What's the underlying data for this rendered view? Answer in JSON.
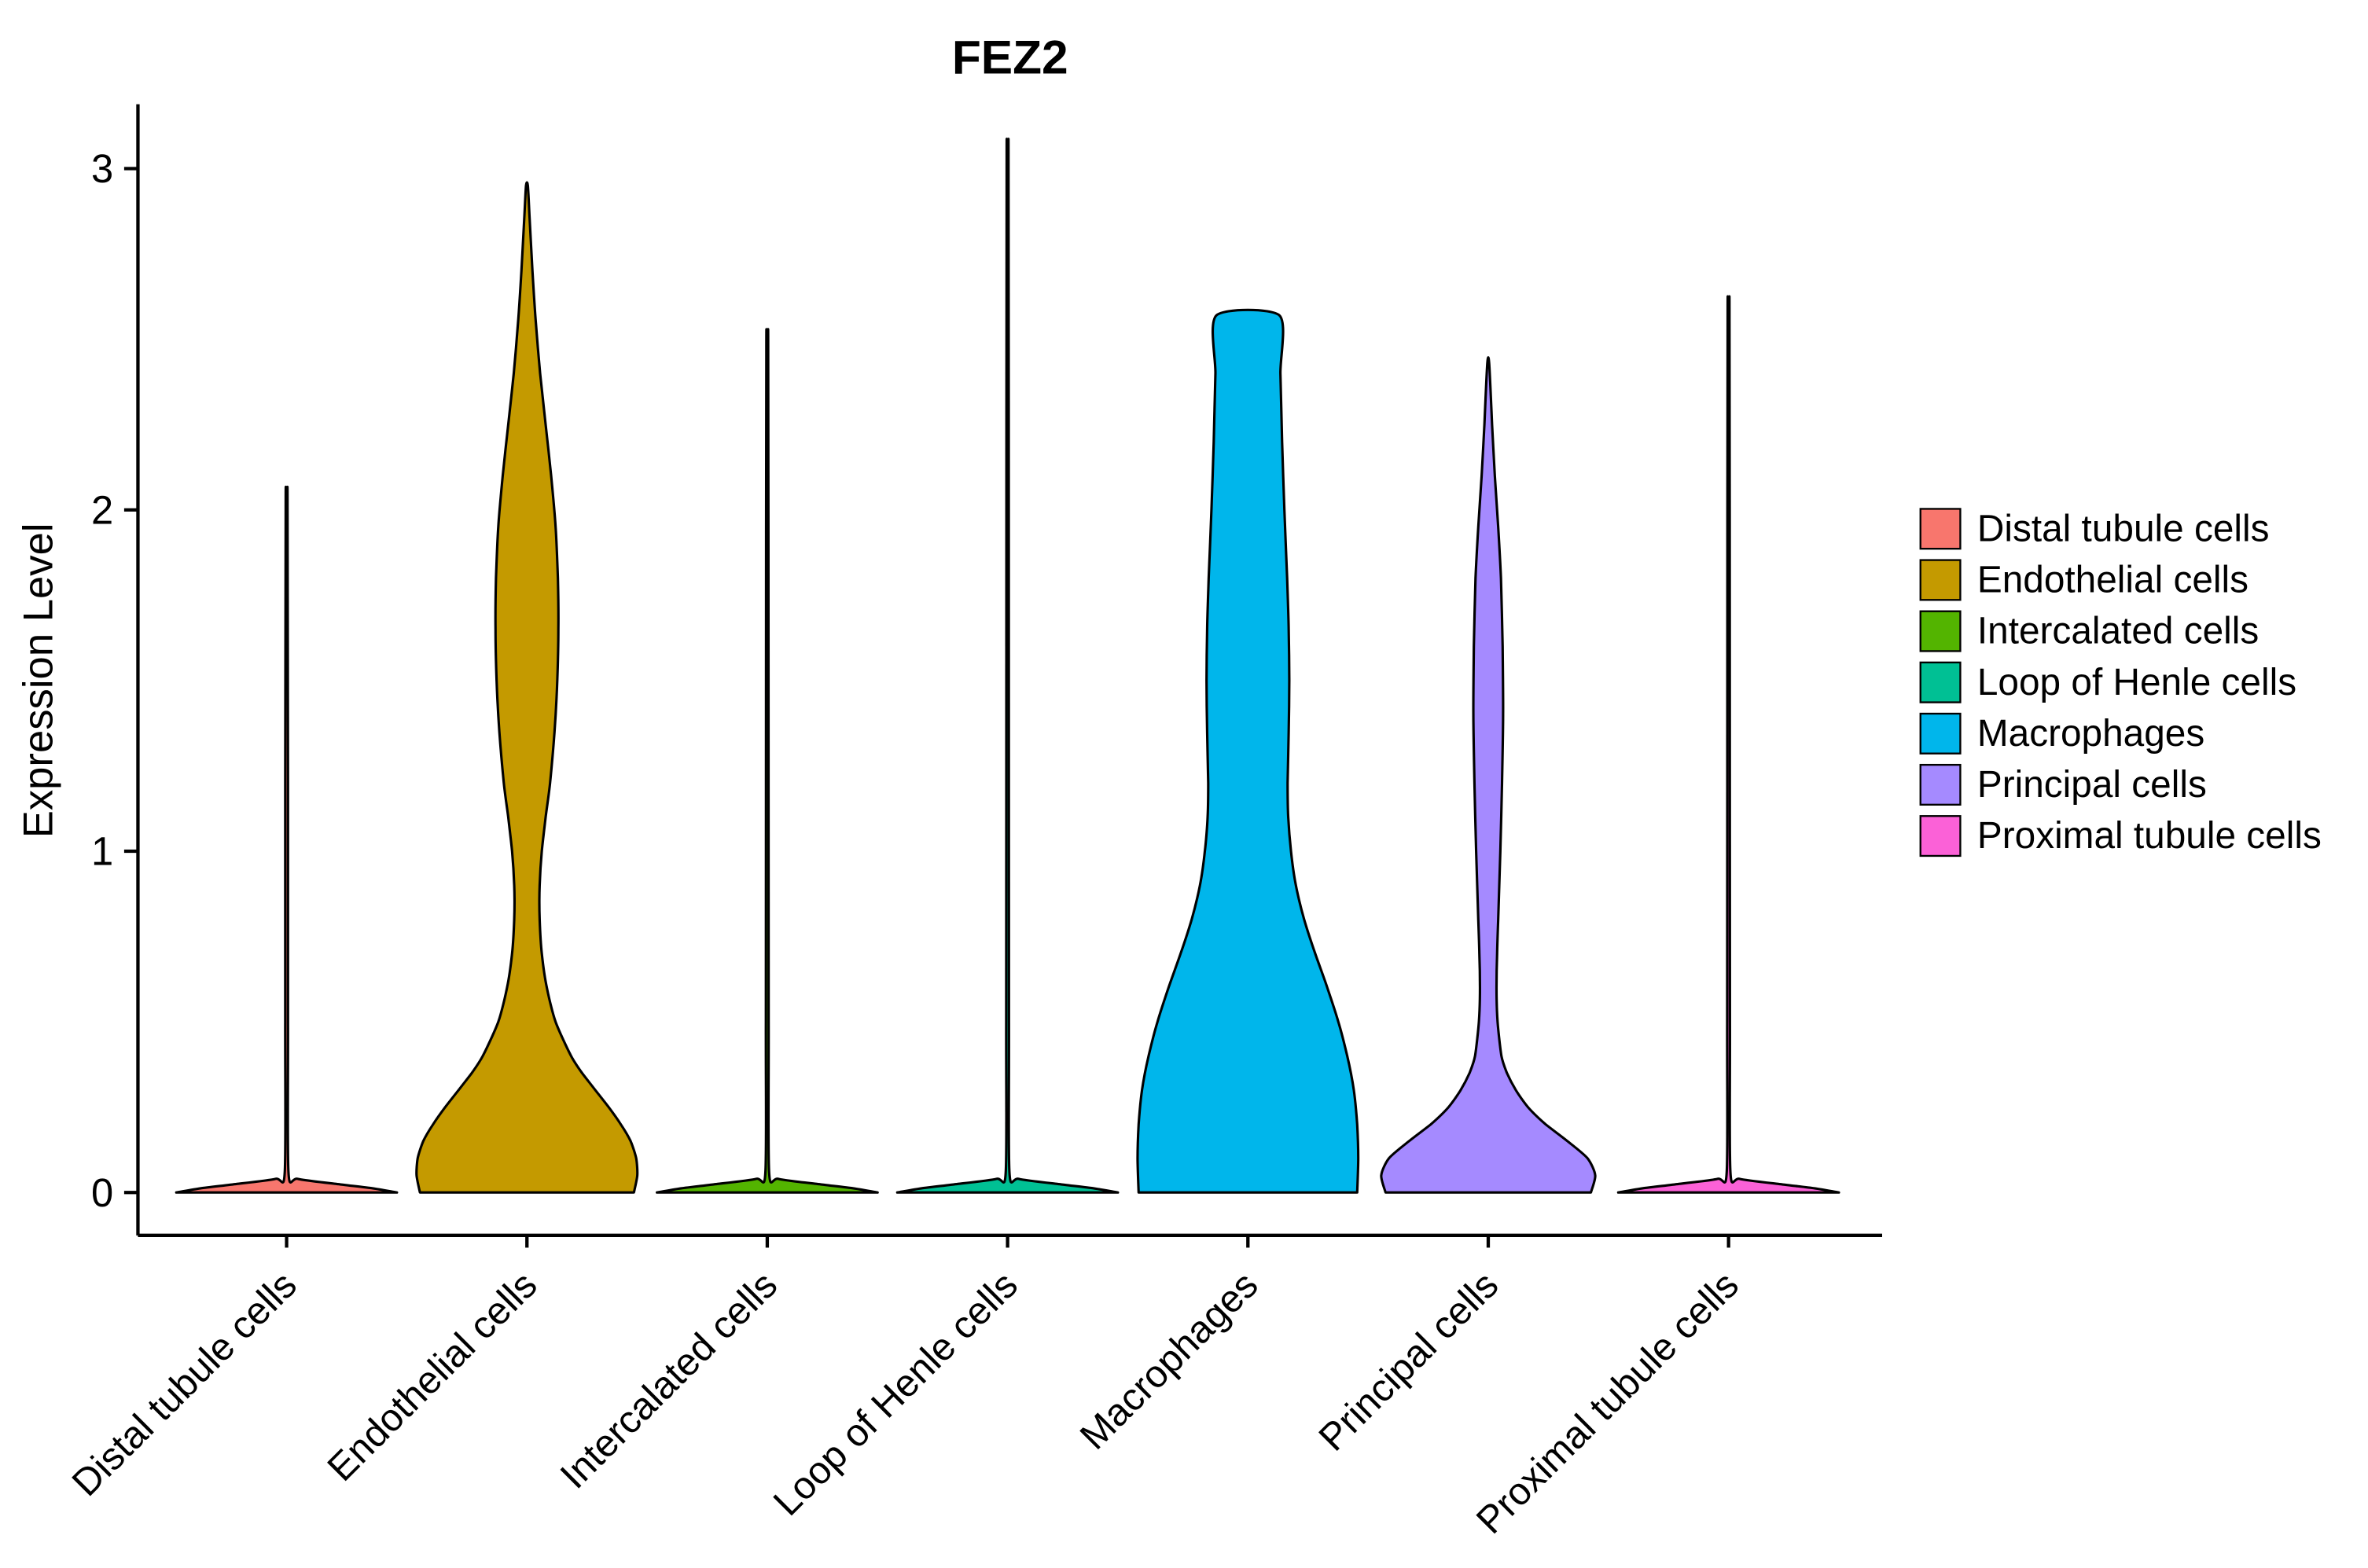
{
  "chart_data": {
    "type": "violin",
    "title": "FEZ2",
    "xlabel": "",
    "ylabel": "Expression Level",
    "ylim": [
      0,
      3.1
    ],
    "yticks": [
      0,
      1,
      2,
      3
    ],
    "grid": false,
    "legend_position": "right",
    "categories": [
      "Distal tubule cells",
      "Endothelial cells",
      "Intercalated cells",
      "Loop of Henle cells",
      "Macrophages",
      "Principal cells",
      "Proximal tubule cells"
    ],
    "series": [
      {
        "name": "Distal tubule cells",
        "color": "#F8766D",
        "max_expression": 2.06,
        "profile": [
          [
            0,
            1.0
          ],
          [
            0.012,
            0.78
          ],
          [
            0.025,
            0.45
          ],
          [
            0.04,
            0.1
          ],
          [
            0.06,
            0.016
          ],
          [
            0.5,
            0.013
          ],
          [
            1.2,
            0.012
          ],
          [
            2.0,
            0.009
          ],
          [
            2.06,
            0.004
          ]
        ]
      },
      {
        "name": "Endothelial cells",
        "color": "#C49A00",
        "max_expression": 2.95,
        "profile": [
          [
            0,
            0.97
          ],
          [
            0.05,
            1.0
          ],
          [
            0.1,
            0.99
          ],
          [
            0.15,
            0.94
          ],
          [
            0.2,
            0.85
          ],
          [
            0.25,
            0.74
          ],
          [
            0.3,
            0.62
          ],
          [
            0.35,
            0.5
          ],
          [
            0.4,
            0.4
          ],
          [
            0.5,
            0.26
          ],
          [
            0.6,
            0.18
          ],
          [
            0.7,
            0.135
          ],
          [
            0.8,
            0.115
          ],
          [
            0.9,
            0.115
          ],
          [
            1.0,
            0.135
          ],
          [
            1.1,
            0.17
          ],
          [
            1.2,
            0.21
          ],
          [
            1.35,
            0.25
          ],
          [
            1.5,
            0.275
          ],
          [
            1.65,
            0.285
          ],
          [
            1.8,
            0.28
          ],
          [
            1.95,
            0.26
          ],
          [
            2.1,
            0.22
          ],
          [
            2.25,
            0.17
          ],
          [
            2.4,
            0.12
          ],
          [
            2.55,
            0.08
          ],
          [
            2.7,
            0.05
          ],
          [
            2.85,
            0.025
          ],
          [
            2.95,
            0.008
          ]
        ]
      },
      {
        "name": "Intercalated cells",
        "color": "#53B400",
        "max_expression": 2.52,
        "profile": [
          [
            0,
            1.0
          ],
          [
            0.012,
            0.78
          ],
          [
            0.025,
            0.45
          ],
          [
            0.04,
            0.1
          ],
          [
            0.06,
            0.016
          ],
          [
            0.5,
            0.013
          ],
          [
            1.5,
            0.011
          ],
          [
            2.45,
            0.009
          ],
          [
            2.52,
            0.004
          ]
        ]
      },
      {
        "name": "Loop of Henle cells",
        "color": "#00C094",
        "max_expression": 3.03,
        "profile": [
          [
            0,
            1.0
          ],
          [
            0.012,
            0.78
          ],
          [
            0.025,
            0.45
          ],
          [
            0.04,
            0.1
          ],
          [
            0.06,
            0.016
          ],
          [
            0.5,
            0.013
          ],
          [
            1.6,
            0.011
          ],
          [
            3.0,
            0.009
          ],
          [
            3.03,
            0.004
          ]
        ]
      },
      {
        "name": "Macrophages",
        "color": "#00B6EB",
        "max_expression": 2.57,
        "profile": [
          [
            0,
            0.99
          ],
          [
            0.1,
            1.0
          ],
          [
            0.2,
            0.99
          ],
          [
            0.3,
            0.96
          ],
          [
            0.4,
            0.9
          ],
          [
            0.5,
            0.82
          ],
          [
            0.6,
            0.72
          ],
          [
            0.7,
            0.61
          ],
          [
            0.8,
            0.51
          ],
          [
            0.9,
            0.435
          ],
          [
            1.0,
            0.39
          ],
          [
            1.1,
            0.365
          ],
          [
            1.2,
            0.36
          ],
          [
            1.35,
            0.37
          ],
          [
            1.5,
            0.375
          ],
          [
            1.65,
            0.37
          ],
          [
            1.8,
            0.355
          ],
          [
            2.0,
            0.33
          ],
          [
            2.2,
            0.31
          ],
          [
            2.4,
            0.295
          ],
          [
            2.57,
            0.285
          ]
        ]
      },
      {
        "name": "Principal cells",
        "color": "#A58AFF",
        "max_expression": 2.43,
        "profile": [
          [
            0,
            0.93
          ],
          [
            0.05,
            0.97
          ],
          [
            0.1,
            0.9
          ],
          [
            0.15,
            0.72
          ],
          [
            0.2,
            0.52
          ],
          [
            0.25,
            0.36
          ],
          [
            0.3,
            0.25
          ],
          [
            0.35,
            0.17
          ],
          [
            0.4,
            0.12
          ],
          [
            0.5,
            0.085
          ],
          [
            0.6,
            0.075
          ],
          [
            0.7,
            0.08
          ],
          [
            0.8,
            0.09
          ],
          [
            0.9,
            0.1
          ],
          [
            1.0,
            0.11
          ],
          [
            1.2,
            0.125
          ],
          [
            1.4,
            0.135
          ],
          [
            1.6,
            0.13
          ],
          [
            1.8,
            0.115
          ],
          [
            1.95,
            0.09
          ],
          [
            2.1,
            0.06
          ],
          [
            2.25,
            0.035
          ],
          [
            2.43,
            0.008
          ]
        ]
      },
      {
        "name": "Proximal tubule cells",
        "color": "#FB61D7",
        "max_expression": 2.6,
        "profile": [
          [
            0,
            1.0
          ],
          [
            0.012,
            0.78
          ],
          [
            0.025,
            0.45
          ],
          [
            0.04,
            0.1
          ],
          [
            0.06,
            0.016
          ],
          [
            0.5,
            0.013
          ],
          [
            1.5,
            0.011
          ],
          [
            2.55,
            0.009
          ],
          [
            2.6,
            0.004
          ]
        ]
      }
    ]
  }
}
